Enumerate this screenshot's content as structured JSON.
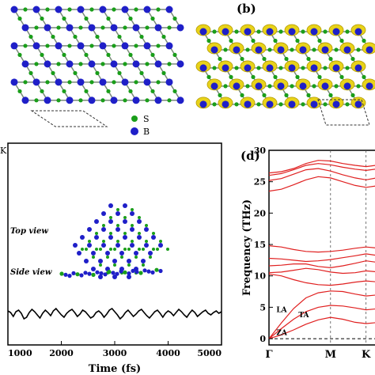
{
  "panels": {
    "b": {
      "label": "(b)"
    },
    "d": {
      "label": "(d)"
    }
  },
  "legend": {
    "s_label": "S",
    "b_label": "B",
    "s_color": "#1a9e1a",
    "b_color": "#1f1fc8"
  },
  "colors": {
    "band": "#e02020",
    "isosurface": "#e8d21a",
    "md_line": "#000000"
  },
  "chart_data": [
    {
      "type": "line",
      "panel": "c",
      "corner_text": "K",
      "xlabel": "Time (fs)",
      "ylabel": "",
      "xlim": [
        1000,
        5000
      ],
      "xticks": [
        1000,
        2000,
        3000,
        4000,
        5000
      ],
      "insets": {
        "top_view": "Top view",
        "side_view": "Side view"
      },
      "series": [
        {
          "x": [
            1000,
            1050,
            1100,
            1150,
            1200,
            1250,
            1300,
            1350,
            1400,
            1450,
            1500,
            1550,
            1600,
            1650,
            1700,
            1750,
            1800,
            1850,
            1900,
            1950,
            2000,
            2050,
            2100,
            2150,
            2200,
            2250,
            2300,
            2350,
            2400,
            2450,
            2500,
            2550,
            2600,
            2650,
            2700,
            2750,
            2800,
            2850,
            2900,
            2950,
            3000,
            3050,
            3100,
            3150,
            3200,
            3250,
            3300,
            3350,
            3400,
            3450,
            3500,
            3550,
            3600,
            3650,
            3700,
            3750,
            3800,
            3850,
            3900,
            3950,
            4000,
            4050,
            4100,
            4150,
            4200,
            4250,
            4300,
            4350,
            4400,
            4450,
            4500,
            4550,
            4600,
            4650,
            4700,
            4750,
            4800,
            4850,
            4900,
            4950,
            5000
          ],
          "y": [
            0.5,
            0.3,
            -0.2,
            0.4,
            0.6,
            0.2,
            -0.5,
            -0.3,
            0.3,
            0.7,
            0.4,
            0.0,
            -0.4,
            0.2,
            0.6,
            0.3,
            -0.1,
            0.5,
            0.8,
            0.4,
            0.0,
            -0.3,
            0.2,
            0.5,
            0.7,
            0.3,
            -0.2,
            0.1,
            0.6,
            0.4,
            0.0,
            -0.4,
            -0.2,
            0.3,
            0.5,
            0.2,
            -0.3,
            0.1,
            0.6,
            0.8,
            0.4,
            0.0,
            -0.5,
            -0.2,
            0.3,
            0.6,
            0.2,
            -0.2,
            0.1,
            0.5,
            0.7,
            0.3,
            -0.1,
            -0.4,
            0.0,
            0.4,
            0.6,
            0.2,
            -0.3,
            0.2,
            0.5,
            0.3,
            -0.1,
            0.3,
            0.7,
            0.4,
            0.0,
            -0.3,
            0.2,
            0.6,
            0.3,
            -0.2,
            0.1,
            0.4,
            0.6,
            0.2,
            0.0,
            0.3,
            0.5,
            0.2,
            0.4
          ]
        }
      ]
    },
    {
      "type": "line",
      "panel": "d",
      "xlabel": "",
      "ylabel": "Frequency (THz)",
      "ylim": [
        -1,
        30
      ],
      "yticks": [
        0,
        5,
        10,
        15,
        20,
        25,
        30
      ],
      "xticks": [
        "Γ",
        "M",
        "K"
      ],
      "x_positions": [
        0,
        1,
        1.577
      ],
      "xlim": [
        0,
        1.8
      ],
      "mode_labels": [
        "LA",
        "TA",
        "ZA"
      ],
      "bands": [
        {
          "x": [
            0,
            0.2,
            0.4,
            0.6,
            0.8,
            1.0,
            1.2,
            1.4,
            1.577,
            1.8
          ],
          "y": [
            0,
            0.6,
            1.4,
            2.3,
            3.0,
            3.4,
            3.1,
            2.6,
            2.4,
            2.6
          ]
        },
        {
          "x": [
            0,
            0.2,
            0.4,
            0.6,
            0.8,
            1.0,
            1.2,
            1.4,
            1.577,
            1.8
          ],
          "y": [
            0,
            1.6,
            3.1,
            4.3,
            5.0,
            5.3,
            5.2,
            4.9,
            4.6,
            4.8
          ]
        },
        {
          "x": [
            0,
            0.2,
            0.4,
            0.6,
            0.8,
            1.0,
            1.2,
            1.4,
            1.577,
            1.8
          ],
          "y": [
            0,
            2.5,
            4.8,
            6.5,
            7.3,
            7.6,
            7.5,
            7.1,
            6.8,
            7.0
          ]
        },
        {
          "x": [
            0,
            0.2,
            0.4,
            0.6,
            0.8,
            1.0,
            1.2,
            1.4,
            1.577,
            1.8
          ],
          "y": [
            10.3,
            10.0,
            9.4,
            8.9,
            8.6,
            8.5,
            8.7,
            9.0,
            9.2,
            9.0
          ]
        },
        {
          "x": [
            0,
            0.2,
            0.4,
            0.6,
            0.8,
            1.0,
            1.2,
            1.4,
            1.577,
            1.8
          ],
          "y": [
            10.5,
            10.6,
            10.9,
            11.2,
            11.0,
            10.6,
            10.4,
            10.5,
            10.8,
            10.6
          ]
        },
        {
          "x": [
            0,
            0.2,
            0.4,
            0.6,
            0.8,
            1.0,
            1.2,
            1.4,
            1.577,
            1.8
          ],
          "y": [
            11.6,
            11.7,
            11.9,
            11.9,
            11.5,
            11.3,
            11.6,
            12.0,
            12.4,
            12.1
          ]
        },
        {
          "x": [
            0,
            0.2,
            0.4,
            0.6,
            0.8,
            1.0,
            1.2,
            1.4,
            1.577,
            1.8
          ],
          "y": [
            12.8,
            12.7,
            12.5,
            12.3,
            12.4,
            12.6,
            12.9,
            13.2,
            13.5,
            13.2
          ]
        },
        {
          "x": [
            0,
            0.2,
            0.4,
            0.6,
            0.8,
            1.0,
            1.2,
            1.4,
            1.577,
            1.8
          ],
          "y": [
            14.8,
            14.6,
            14.2,
            13.9,
            13.8,
            13.9,
            14.1,
            14.4,
            14.6,
            14.4
          ]
        },
        {
          "x": [
            0,
            0.2,
            0.4,
            0.6,
            0.8,
            1.0,
            1.2,
            1.4,
            1.577,
            1.8
          ],
          "y": [
            23.5,
            23.8,
            24.5,
            25.3,
            25.8,
            25.6,
            25.0,
            24.4,
            24.1,
            24.4
          ]
        },
        {
          "x": [
            0,
            0.2,
            0.4,
            0.6,
            0.8,
            1.0,
            1.2,
            1.4,
            1.577,
            1.8
          ],
          "y": [
            25.2,
            25.5,
            26.2,
            26.9,
            27.1,
            26.7,
            26.1,
            25.6,
            25.3,
            25.7
          ]
        },
        {
          "x": [
            0,
            0.2,
            0.4,
            0.6,
            0.8,
            1.0,
            1.2,
            1.4,
            1.577,
            1.8
          ],
          "y": [
            26.0,
            26.3,
            26.9,
            27.6,
            27.9,
            27.7,
            27.3,
            27.0,
            26.8,
            27.1
          ]
        },
        {
          "x": [
            0,
            0.2,
            0.4,
            0.6,
            0.8,
            1.0,
            1.2,
            1.4,
            1.577,
            1.8
          ],
          "y": [
            26.4,
            26.6,
            27.1,
            27.9,
            28.4,
            28.3,
            27.9,
            27.6,
            27.4,
            27.7
          ]
        }
      ]
    }
  ]
}
